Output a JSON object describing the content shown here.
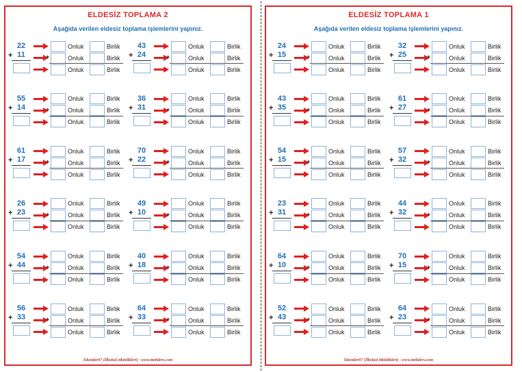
{
  "pages": [
    {
      "title": "ELDESİZ TOPLAMA  2",
      "instruction": "Aşağıda verilen eldesiz toplama işlemlerini yapınız.",
      "footer": "İskender07 (İlkokul etkinlikleri) - www.mebders.com",
      "problems": [
        {
          "a": "22",
          "b": "11"
        },
        {
          "a": "43",
          "b": "24"
        },
        {
          "a": "55",
          "b": "14"
        },
        {
          "a": "36",
          "b": "31"
        },
        {
          "a": "61",
          "b": "17"
        },
        {
          "a": "70",
          "b": "22"
        },
        {
          "a": "26",
          "b": "23"
        },
        {
          "a": "49",
          "b": "10"
        },
        {
          "a": "54",
          "b": "44"
        },
        {
          "a": "40",
          "b": "18"
        },
        {
          "a": "56",
          "b": "33"
        },
        {
          "a": "64",
          "b": "33"
        }
      ]
    },
    {
      "title": "ELDESİZ TOPLAMA  1",
      "instruction": "Aşağıda verilen eldesiz toplama işlemlerini yapınız.",
      "footer": "İskender07 (İlkokul etkinlikleri) - www.mebders.com",
      "problems": [
        {
          "a": "24",
          "b": "15"
        },
        {
          "a": "32",
          "b": "25"
        },
        {
          "a": "43",
          "b": "35"
        },
        {
          "a": "61",
          "b": "27"
        },
        {
          "a": "54",
          "b": "15"
        },
        {
          "a": "57",
          "b": "32"
        },
        {
          "a": "23",
          "b": "31"
        },
        {
          "a": "44",
          "b": "32"
        },
        {
          "a": "64",
          "b": "10"
        },
        {
          "a": "70",
          "b": "15"
        },
        {
          "a": "52",
          "b": "43"
        },
        {
          "a": "64",
          "b": "23"
        }
      ]
    }
  ],
  "labels": {
    "tens": "Onluk",
    "ones": "Birlik",
    "plus": "+"
  },
  "colors": {
    "title": "#d42a2a",
    "numbers": "#1f6fb5",
    "arrow": "#e02020",
    "border": "#d42a2a"
  },
  "icons": {
    "arrow": "right-arrow-icon"
  }
}
